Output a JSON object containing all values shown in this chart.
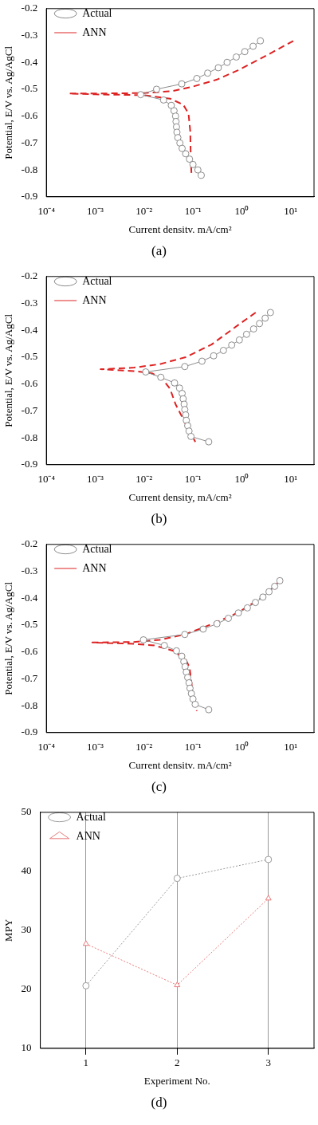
{
  "chart_data": [
    {
      "type": "line",
      "xlabel": "Current densitv. mA/cm²",
      "ylabel": "Potential, E/V vs. Ag/AgCl",
      "annotations": [
        "(a)"
      ],
      "log": "x",
      "xlim": [
        0.0001,
        30
      ],
      "ylim": [
        -0.9,
        -0.2
      ],
      "xticks": [
        {
          "value": 0.0001,
          "label": "10⁻⁴"
        },
        {
          "value": 0.001,
          "label": "10⁻³"
        },
        {
          "value": 0.01,
          "label": "10⁻²"
        },
        {
          "value": 0.1,
          "label": "10⁻¹"
        },
        {
          "value": 1,
          "label": "10⁰"
        },
        {
          "value": 10,
          "label": "10¹"
        }
      ],
      "yticks": [
        -0.9,
        -0.8,
        -0.7,
        -0.6,
        -0.5,
        -0.4,
        -0.3,
        -0.2
      ],
      "legend": "top left",
      "series": [
        {
          "name": "Actual",
          "color": "#8c8c8c",
          "marker": "circle",
          "line_style": "solid",
          "x": [
            2.4,
            1.7,
            1.15,
            0.77,
            0.5,
            0.33,
            0.2,
            0.12,
            0.059,
            0.018,
            0.0085,
            0.025,
            0.036,
            0.041,
            0.044,
            0.045,
            0.046,
            0.047,
            0.049,
            0.054,
            0.06,
            0.071,
            0.085,
            0.1,
            0.126,
            0.148
          ],
          "values": [
            -0.32,
            -0.34,
            -0.36,
            -0.38,
            -0.4,
            -0.42,
            -0.44,
            -0.46,
            -0.48,
            -0.5,
            -0.52,
            -0.54,
            -0.56,
            -0.58,
            -0.6,
            -0.62,
            -0.64,
            -0.66,
            -0.68,
            -0.7,
            -0.72,
            -0.74,
            -0.76,
            -0.78,
            -0.8,
            -0.82
          ]
        },
        {
          "name": "ANN",
          "color": "#dd2222",
          "marker": "none",
          "line_style": "dashed",
          "x": [
            11.3,
            2.8,
            0.82,
            0.31,
            0.1,
            0.038,
            0.01,
            0.001,
            0.00029,
            0.001,
            0.01,
            0.034,
            0.063,
            0.081,
            0.088,
            0.09,
            0.093
          ],
          "values": [
            -0.32,
            -0.38,
            -0.43,
            -0.464,
            -0.49,
            -0.507,
            -0.514,
            -0.516,
            -0.516,
            -0.519,
            -0.522,
            -0.535,
            -0.557,
            -0.59,
            -0.656,
            -0.75,
            -0.812
          ]
        }
      ]
    },
    {
      "type": "line",
      "xlabel": "Current density, mA/cm²",
      "ylabel": "Potential, E/V vs. Ag/AgCl",
      "annotations": [
        "(b)"
      ],
      "log": "x",
      "xlim": [
        0.0001,
        30
      ],
      "ylim": [
        -0.9,
        -0.2
      ],
      "xticks": [
        {
          "value": 0.0001,
          "label": "10⁻⁴"
        },
        {
          "value": 0.001,
          "label": "10⁻³"
        },
        {
          "value": 0.01,
          "label": "10⁻²"
        },
        {
          "value": 0.1,
          "label": "10⁻¹"
        },
        {
          "value": 1,
          "label": "10⁰"
        },
        {
          "value": 10,
          "label": "10¹"
        }
      ],
      "yticks": [
        -0.9,
        -0.8,
        -0.7,
        -0.6,
        -0.5,
        -0.4,
        -0.3,
        -0.2
      ],
      "legend": "top left",
      "series": [
        {
          "name": "Actual",
          "color": "#8c8c8c",
          "marker": "circle",
          "line_style": "solid",
          "x": [
            3.85,
            3.0,
            2.3,
            1.74,
            1.25,
            0.89,
            0.62,
            0.42,
            0.265,
            0.153,
            0.068,
            0.0108,
            0.022,
            0.042,
            0.053,
            0.06,
            0.063,
            0.066,
            0.068,
            0.071,
            0.073,
            0.078,
            0.083,
            0.091,
            0.21
          ],
          "values": [
            -0.334,
            -0.355,
            -0.375,
            -0.395,
            -0.415,
            -0.436,
            -0.455,
            -0.475,
            -0.495,
            -0.515,
            -0.535,
            -0.555,
            -0.575,
            -0.596,
            -0.615,
            -0.635,
            -0.655,
            -0.675,
            -0.695,
            -0.715,
            -0.735,
            -0.755,
            -0.775,
            -0.795,
            -0.815
          ]
        },
        {
          "name": "ANN",
          "color": "#dd2222",
          "marker": "none",
          "line_style": "dashed",
          "x": [
            1.92,
            0.82,
            0.24,
            0.071,
            0.021,
            0.0062,
            0.00129,
            0.0062,
            0.0145,
            0.0234,
            0.034,
            0.044,
            0.059,
            0.08,
            0.112
          ],
          "values": [
            -0.334,
            -0.382,
            -0.453,
            -0.5,
            -0.526,
            -0.539,
            -0.545,
            -0.552,
            -0.56,
            -0.58,
            -0.618,
            -0.675,
            -0.72,
            -0.768,
            -0.815
          ]
        }
      ]
    },
    {
      "type": "line",
      "xlabel": "Current densitv. mA/cm²",
      "ylabel": "Potential, E/V vs. Ag/AgCl",
      "annotations": [
        "(c)"
      ],
      "log": "x",
      "xlim": [
        0.0001,
        30
      ],
      "ylim": [
        -0.9,
        -0.2
      ],
      "xticks": [
        {
          "value": 0.0001,
          "label": "10⁻⁴"
        },
        {
          "value": 0.001,
          "label": "10⁻³"
        },
        {
          "value": 0.01,
          "label": "10⁻²"
        },
        {
          "value": 0.1,
          "label": "10⁻¹"
        },
        {
          "value": 1,
          "label": "10⁰"
        },
        {
          "value": 10,
          "label": "10¹"
        }
      ],
      "yticks": [
        -0.9,
        -0.8,
        -0.7,
        -0.6,
        -0.5,
        -0.4,
        -0.3,
        -0.2
      ],
      "legend": "top left",
      "series": [
        {
          "name": "Actual",
          "color": "#8c8c8c",
          "marker": "circle",
          "line_style": "solid",
          "x": [
            6.0,
            4.7,
            3.6,
            2.7,
            1.9,
            1.3,
            0.85,
            0.53,
            0.31,
            0.162,
            0.068,
            0.0097,
            0.026,
            0.046,
            0.059,
            0.065,
            0.069,
            0.073,
            0.078,
            0.083,
            0.087,
            0.093,
            0.1,
            0.111,
            0.21
          ],
          "values": [
            -0.335,
            -0.356,
            -0.376,
            -0.396,
            -0.416,
            -0.436,
            -0.455,
            -0.475,
            -0.495,
            -0.515,
            -0.535,
            -0.555,
            -0.576,
            -0.596,
            -0.616,
            -0.636,
            -0.655,
            -0.675,
            -0.695,
            -0.715,
            -0.735,
            -0.755,
            -0.775,
            -0.795,
            -0.815
          ]
        },
        {
          "name": "ANN",
          "color": "#dd2222",
          "marker": "none",
          "line_style": "dashed",
          "x": [
            5.9,
            2.8,
            0.81,
            0.24,
            0.071,
            0.021,
            0.0062,
            0.00087,
            0.0062,
            0.0163,
            0.0384,
            0.071,
            0.085,
            0.093,
            0.1,
            0.12
          ],
          "values": [
            -0.337,
            -0.394,
            -0.455,
            -0.497,
            -0.534,
            -0.555,
            -0.563,
            -0.565,
            -0.57,
            -0.576,
            -0.595,
            -0.628,
            -0.657,
            -0.713,
            -0.77,
            -0.82
          ]
        }
      ]
    },
    {
      "type": "line",
      "xlabel": "Experiment No.",
      "ylabel": "MPY",
      "annotations": [
        "(d)"
      ],
      "categories": [
        "1",
        "2",
        "3"
      ],
      "ylim": [
        10,
        50
      ],
      "yticks": [
        10,
        20,
        30,
        40,
        50
      ],
      "grid": "x",
      "legend": "top left",
      "series": [
        {
          "name": "Actual",
          "color": "#9a9a9a",
          "marker": "circle",
          "line_style": "dotted",
          "values": [
            20.6,
            38.8,
            42.0
          ]
        },
        {
          "name": "ANN",
          "color": "#e87a7a",
          "marker": "triangle",
          "line_style": "dotted",
          "values": [
            27.7,
            20.7,
            35.4
          ]
        }
      ]
    }
  ]
}
